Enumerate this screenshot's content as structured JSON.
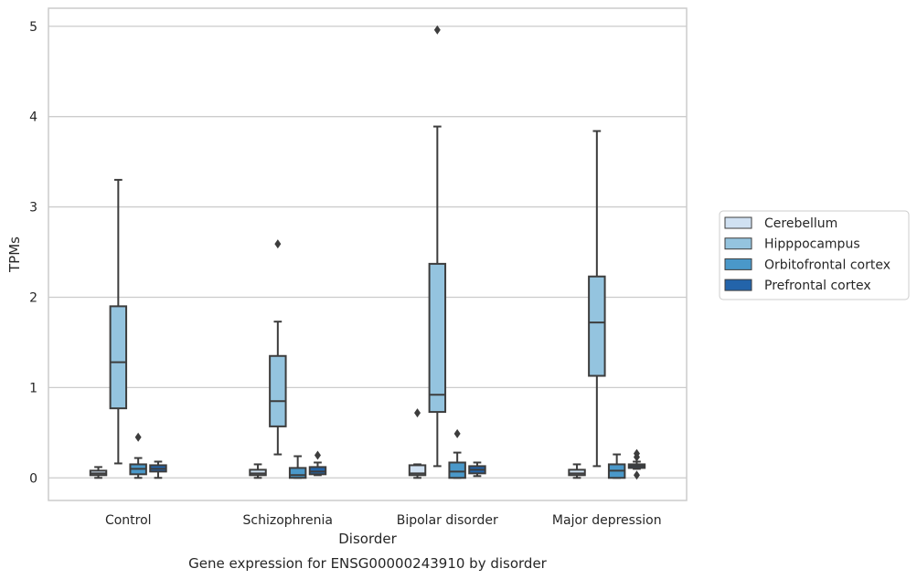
{
  "chart_data": {
    "type": "box",
    "xlabel": "Disorder",
    "ylabel": "TPMs",
    "caption": "Gene expression for ENSG00000243910 by disorder",
    "categories": [
      "Control",
      "Schizophrenia",
      "Bipolar disorder",
      "Major depression"
    ],
    "ylim": [
      -0.25,
      5.2
    ],
    "yticks": [
      "0",
      "1",
      "2",
      "3",
      "4",
      "5"
    ],
    "grid": true,
    "legend_position": "right",
    "series": [
      {
        "name": "Cerebellum",
        "color": "#d0e1f2",
        "boxes": [
          {
            "whislo": 0.0,
            "q1": 0.03,
            "med": 0.05,
            "q3": 0.08,
            "whishi": 0.12,
            "fliers": []
          },
          {
            "whislo": 0.0,
            "q1": 0.03,
            "med": 0.05,
            "q3": 0.09,
            "whishi": 0.15,
            "fliers": []
          },
          {
            "whislo": 0.0,
            "q1": 0.03,
            "med": 0.05,
            "q3": 0.14,
            "whishi": 0.15,
            "fliers": [
              0.72
            ]
          },
          {
            "whislo": 0.0,
            "q1": 0.03,
            "med": 0.05,
            "q3": 0.09,
            "whishi": 0.15,
            "fliers": []
          }
        ]
      },
      {
        "name": "Hipppocampus",
        "color": "#94c4df",
        "boxes": [
          {
            "whislo": 0.16,
            "q1": 0.77,
            "med": 1.28,
            "q3": 1.9,
            "whishi": 3.3,
            "fliers": []
          },
          {
            "whislo": 0.26,
            "q1": 0.57,
            "med": 0.85,
            "q3": 1.35,
            "whishi": 1.73,
            "fliers": [
              2.59
            ]
          },
          {
            "whislo": 0.13,
            "q1": 0.73,
            "med": 0.92,
            "q3": 2.37,
            "whishi": 3.89,
            "fliers": [
              4.96
            ]
          },
          {
            "whislo": 0.13,
            "q1": 1.13,
            "med": 1.72,
            "q3": 2.23,
            "whishi": 3.84,
            "fliers": []
          }
        ]
      },
      {
        "name": "Orbitofrontal cortex",
        "color": "#4a98c9",
        "boxes": [
          {
            "whislo": 0.0,
            "q1": 0.04,
            "med": 0.1,
            "q3": 0.15,
            "whishi": 0.22,
            "fliers": [
              0.45
            ]
          },
          {
            "whislo": 0.0,
            "q1": 0.0,
            "med": 0.03,
            "q3": 0.11,
            "whishi": 0.24,
            "fliers": []
          },
          {
            "whislo": 0.0,
            "q1": 0.0,
            "med": 0.07,
            "q3": 0.17,
            "whishi": 0.28,
            "fliers": [
              0.49
            ]
          },
          {
            "whislo": 0.0,
            "q1": 0.0,
            "med": 0.08,
            "q3": 0.15,
            "whishi": 0.26,
            "fliers": []
          }
        ]
      },
      {
        "name": "Prefrontal cortex",
        "color": "#2364aa",
        "boxes": [
          {
            "whislo": 0.0,
            "q1": 0.07,
            "med": 0.1,
            "q3": 0.14,
            "whishi": 0.18,
            "fliers": []
          },
          {
            "whislo": 0.03,
            "q1": 0.04,
            "med": 0.07,
            "q3": 0.12,
            "whishi": 0.17,
            "fliers": [
              0.25
            ]
          },
          {
            "whislo": 0.02,
            "q1": 0.05,
            "med": 0.09,
            "q3": 0.13,
            "whishi": 0.17,
            "fliers": []
          },
          {
            "whislo": 0.1,
            "q1": 0.11,
            "med": 0.13,
            "q3": 0.15,
            "whishi": 0.18,
            "fliers": [
              0.03,
              0.23,
              0.27
            ]
          }
        ]
      }
    ]
  }
}
